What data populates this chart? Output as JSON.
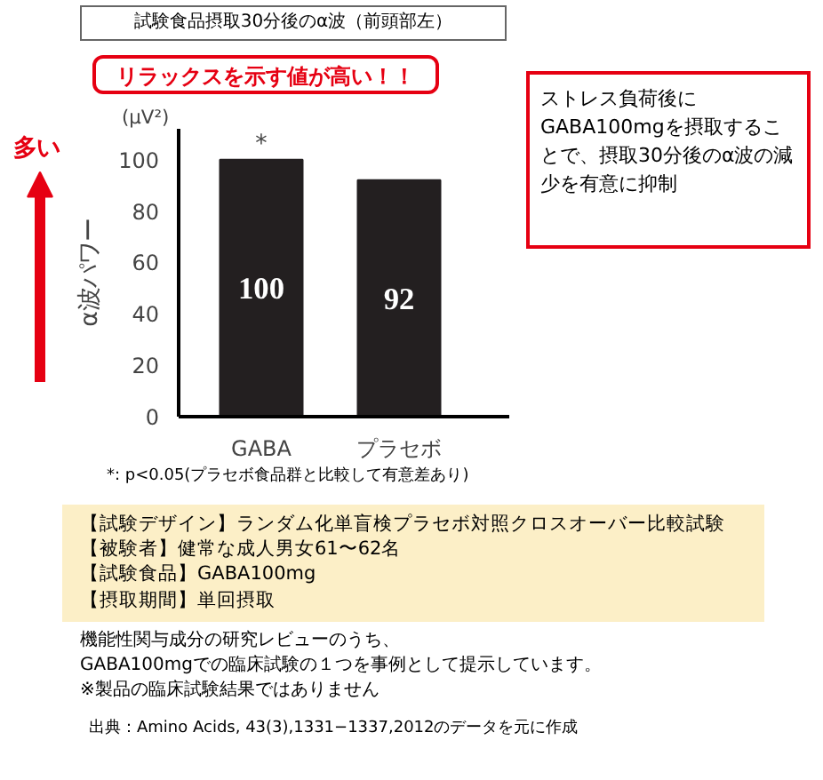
{
  "chart_data": {
    "type": "bar",
    "title": "試験食品摂取30分後のα波（前頭部左）",
    "ylabel": "α波パワー",
    "categories": [
      "GABA",
      "プラセボ"
    ],
    "values": [
      100,
      92
    ],
    "color": "#231f20",
    "ylim": [
      0,
      112
    ],
    "yticks": [
      0,
      20,
      40,
      60,
      80,
      100
    ],
    "grid": false,
    "data_labels": true,
    "annotations": [
      {
        "text": "*",
        "x": "GABA",
        "y": 100
      },
      "リラックスを示す値が高い！！",
      "ストレス負荷後にGABA100mgを摂取することで、摂取30分後のα波の減少を有意に抑制",
      "(μV²)",
      "多い",
      "*: p<0.05(プラセボ食品群と比較して有意差あり)",
      "【試験デザイン】ランダム化単盲検プラセボ対照クロスオーバー比較試験",
      "【被験者】健常な成人男女61〜62名",
      "【試験食品】GABA100mg",
      "【摂取期間】単回摂取",
      "機能性関与成分の研究レビューのうち、",
      "GABA100mgでの臨床試験の１つを事例として提示しています。",
      "※製品の臨床試験結果ではありません",
      "出典：Amino Acids, 43(3),1331−1337,2012のデータを元に作成"
    ]
  }
}
